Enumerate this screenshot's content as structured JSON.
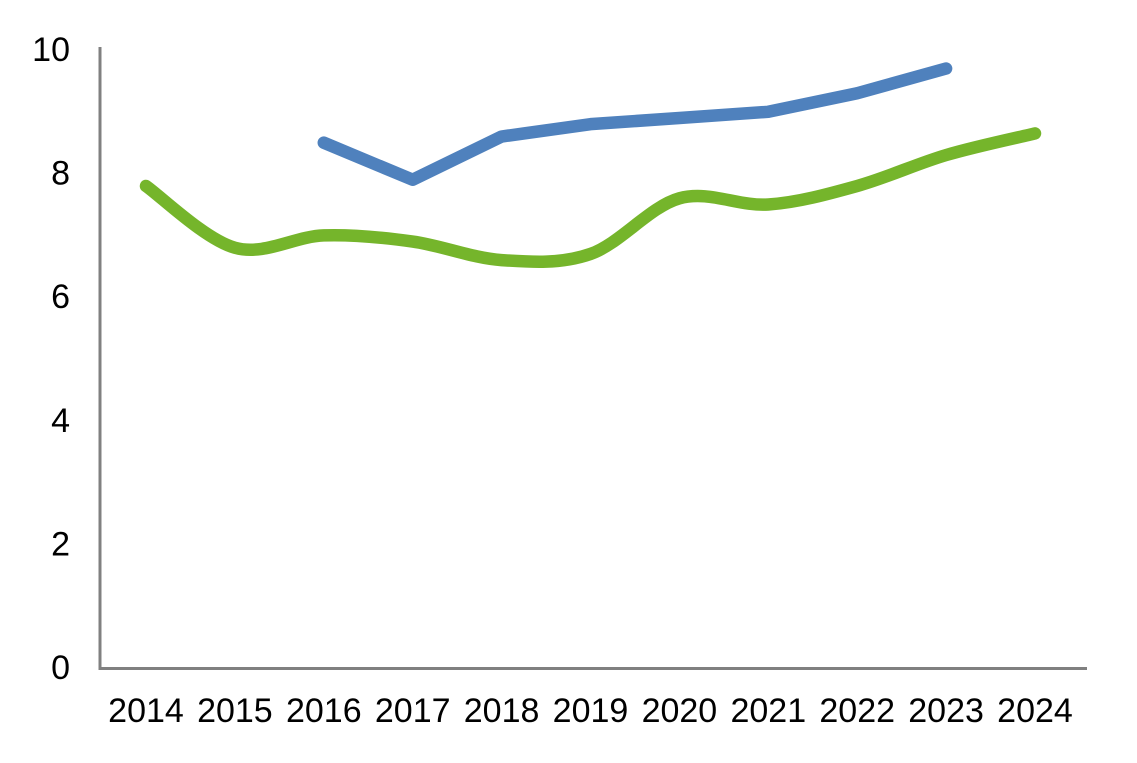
{
  "chart_data": {
    "type": "line",
    "title": "",
    "xlabel": "",
    "ylabel": "",
    "x_categories": [
      "2014",
      "2015",
      "2016",
      "2017",
      "2018",
      "2019",
      "2020",
      "2021",
      "2022",
      "2023",
      "2024"
    ],
    "series": [
      {
        "id": "blue",
        "color": "#4F81BD",
        "smooth": false,
        "stroke_width": 12.5,
        "values": [
          null,
          null,
          8.5,
          7.9,
          8.6,
          8.8,
          8.9,
          9.0,
          9.3,
          9.7,
          null
        ]
      },
      {
        "id": "green",
        "color": "#75B52B",
        "smooth": true,
        "stroke_width": 12.5,
        "values": [
          7.8,
          6.8,
          7.0,
          6.9,
          6.6,
          6.7,
          7.6,
          7.5,
          7.8,
          8.3,
          8.65
        ]
      }
    ],
    "y_axis": {
      "min": 0,
      "max": 10,
      "tick_labels": [
        "0",
        "2",
        "4",
        "6",
        "8",
        "10"
      ],
      "tick_values": [
        0,
        2,
        4,
        6,
        8,
        10
      ]
    },
    "grid": false,
    "legend": null,
    "axis_color": "#808080",
    "text_color": "#000000",
    "background": "#FFFFFF"
  }
}
